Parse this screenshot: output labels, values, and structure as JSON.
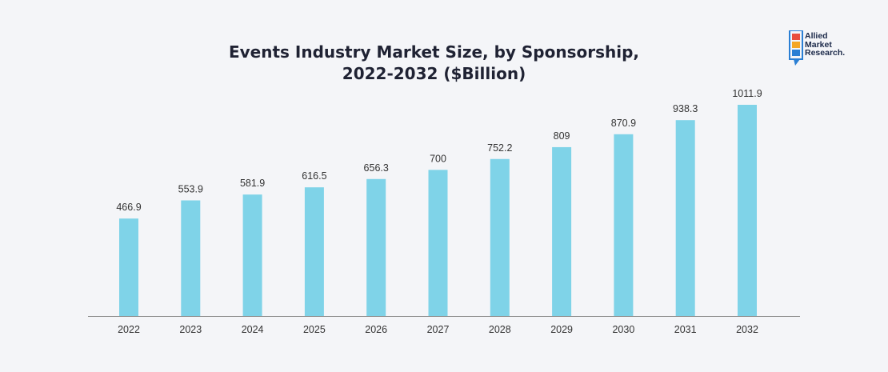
{
  "title_line1": "Events Industry Market Size, by Sponsorship,",
  "title_line2": "2022-2032 ($Billion)",
  "logo": {
    "line1": "Allied",
    "line2": "Market",
    "line3": "Research.",
    "colors": [
      "#e94e3c",
      "#f5a623",
      "#2a7fd4"
    ]
  },
  "colors": {
    "bar": "#7fd3e8",
    "axis": "#888888",
    "text": "#333333",
    "background": "#f4f5f8"
  },
  "chart_data": {
    "type": "bar",
    "title": "Events Industry Market Size, by Sponsorship, 2022-2032 ($Billion)",
    "categories": [
      "2022",
      "2023",
      "2024",
      "2025",
      "2026",
      "2027",
      "2028",
      "2029",
      "2030",
      "2031",
      "2032"
    ],
    "values": [
      466.9,
      553.9,
      581.9,
      616.5,
      656.3,
      700,
      752.2,
      809,
      870.9,
      938.3,
      1011.9
    ],
    "value_labels": [
      "466.9",
      "553.9",
      "581.9",
      "616.5",
      "656.3",
      "700",
      "752.2",
      "809",
      "870.9",
      "938.3",
      "1011.9"
    ],
    "xlabel": "",
    "ylabel": "",
    "ylim": [
      0,
      1011.9
    ],
    "grid": false,
    "legend": "none"
  }
}
